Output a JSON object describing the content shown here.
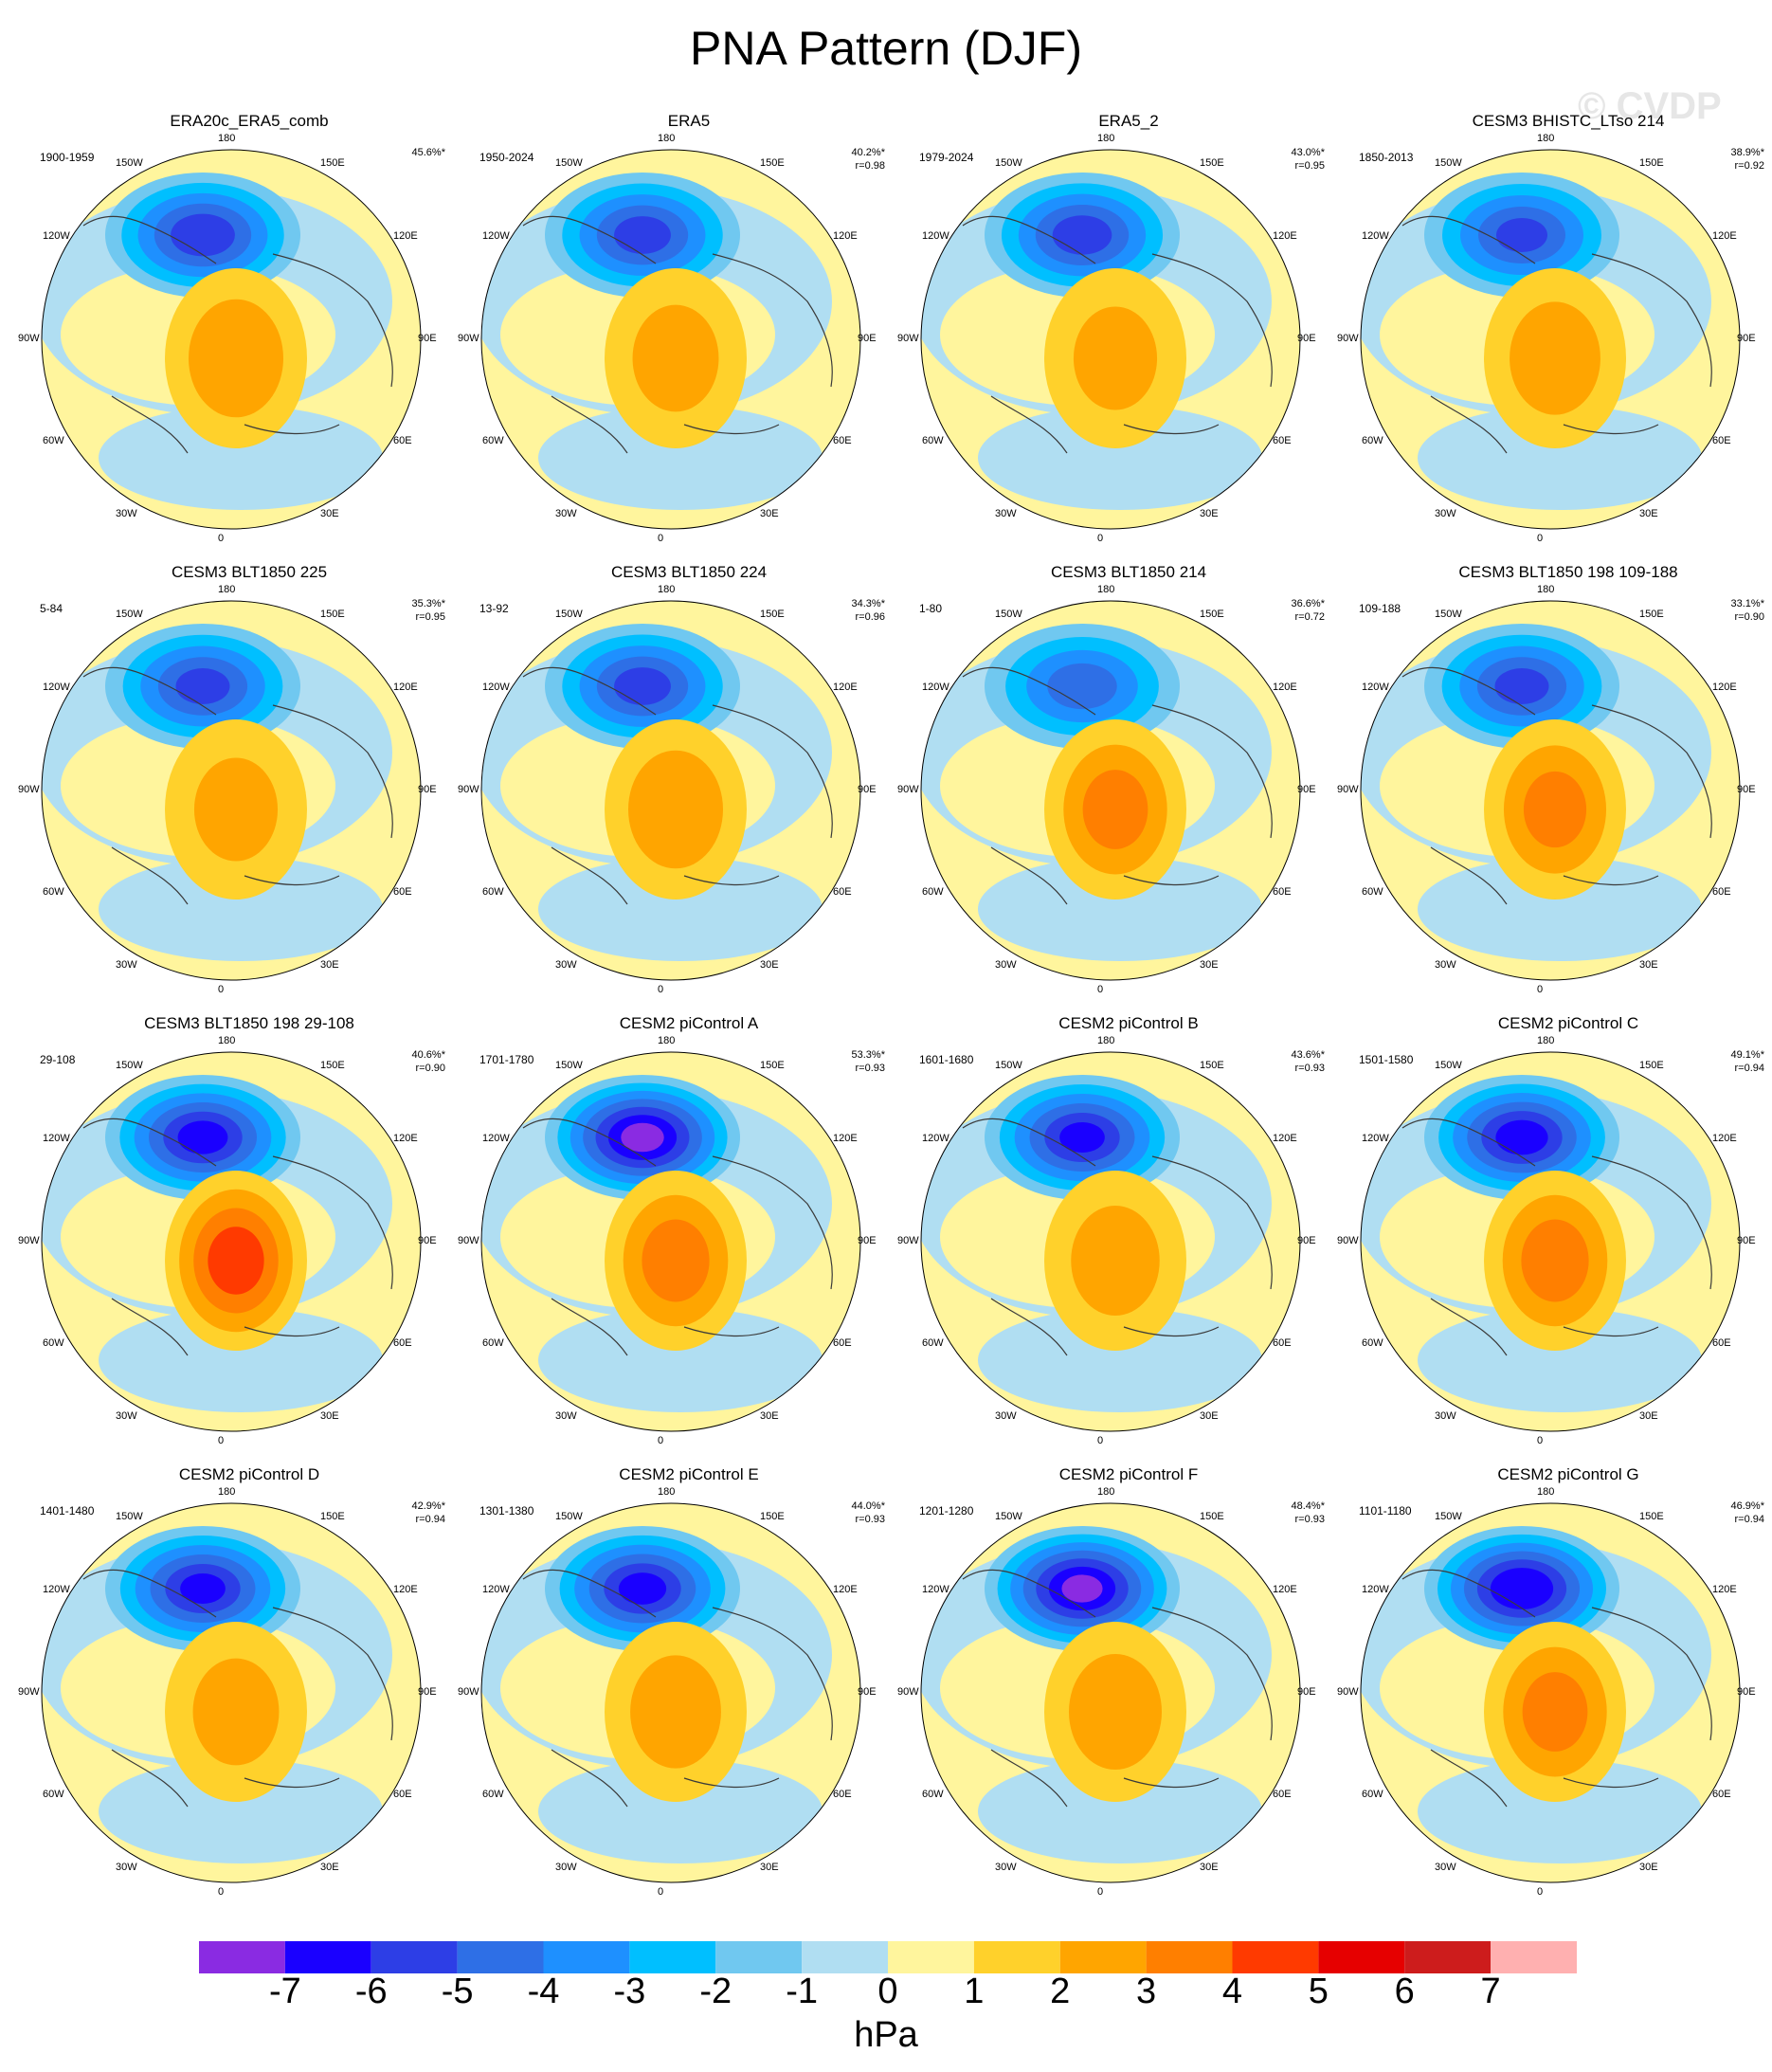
{
  "figure": {
    "title": "PNA Pattern (DJF)",
    "watermark": "© CVDP",
    "units": "hPa"
  },
  "longitude_labels": {
    "top": "180",
    "top_left": "150W",
    "top_right": "150E",
    "upper_left": "120W",
    "upper_right": "120E",
    "mid_left": "90W",
    "mid_right": "90E",
    "lower_left": "60W",
    "lower_right": "60E",
    "bottom_left": "30W",
    "bottom_right": "30E",
    "bottom": "0"
  },
  "colors": {
    "land_outline": "#3a3a3a",
    "map_border": "#000000"
  },
  "colorbar": {
    "colors": [
      "#8a2be2",
      "#1a00ff",
      "#2d3ee6",
      "#2e6fe6",
      "#1e90ff",
      "#00bfff",
      "#70c8f0",
      "#b0def2",
      "#fff59d",
      "#ffd12b",
      "#ffa500",
      "#ff7f00",
      "#ff3a00",
      "#e60000",
      "#cd1c1c",
      "#ffb0b0"
    ],
    "labels": [
      "-7",
      "-6",
      "-5",
      "-4",
      "-3",
      "-2",
      "-1",
      "0",
      "1",
      "2",
      "3",
      "4",
      "5",
      "6",
      "7"
    ]
  },
  "panels": [
    {
      "title": "ERA20c_ERA5_comb",
      "period": "1900-1959",
      "pct": "45.6%*",
      "r": "",
      "low": -5.5,
      "high": 2.6
    },
    {
      "title": "ERA5",
      "period": "1950-2024",
      "pct": "40.2%*",
      "r": "r=0.98",
      "low": -5.2,
      "high": 2.2
    },
    {
      "title": "ERA5_2",
      "period": "1979-2024",
      "pct": "43.0%*",
      "r": "r=0.95",
      "low": -5.3,
      "high": 2.1
    },
    {
      "title": "CESM3 BHISTC_LTso 214",
      "period": "1850-2013",
      "pct": "38.9%*",
      "r": "r=0.92",
      "low": -5.0,
      "high": 2.4
    },
    {
      "title": "CESM3 BLT1850 225",
      "period": "5-84",
      "pct": "35.3%*",
      "r": "r=0.95",
      "low": -5.1,
      "high": 2.1
    },
    {
      "title": "CESM3 BLT1850 224",
      "period": "13-92",
      "pct": "34.3%*",
      "r": "r=0.96",
      "low": -5.2,
      "high": 2.6
    },
    {
      "title": "CESM3 BLT1850 214",
      "period": "1-80",
      "pct": "36.6%*",
      "r": "r=0.72",
      "low": -4.3,
      "high": 3.2
    },
    {
      "title": "CESM3 BLT1850 198 109-188",
      "period": "109-188",
      "pct": "33.1%*",
      "r": "r=0.90",
      "low": -5.1,
      "high": 3.1
    },
    {
      "title": "CESM3 BLT1850 198 29-108",
      "period": "29-108",
      "pct": "40.6%*",
      "r": "r=0.90",
      "low": -6.2,
      "high": 4.3
    },
    {
      "title": "CESM2 piControl A",
      "period": "1701-1780",
      "pct": "53.3%*",
      "r": "r=0.93",
      "low": -7.1,
      "high": 3.3
    },
    {
      "title": "CESM2 piControl B",
      "period": "1601-1680",
      "pct": "43.6%*",
      "r": "r=0.93",
      "low": -6.0,
      "high": 2.3
    },
    {
      "title": "CESM2 piControl C",
      "period": "1501-1580",
      "pct": "49.1%*",
      "r": "r=0.94",
      "low": -6.3,
      "high": 3.3
    },
    {
      "title": "CESM2 piControl D",
      "period": "1401-1480",
      "pct": "42.9%*",
      "r": "r=0.94",
      "low": -6.0,
      "high": 2.2
    },
    {
      "title": "CESM2 piControl E",
      "period": "1301-1380",
      "pct": "44.0%*",
      "r": "r=0.93",
      "low": -6.1,
      "high": 2.4
    },
    {
      "title": "CESM2 piControl F",
      "period": "1201-1280",
      "pct": "48.4%*",
      "r": "r=0.93",
      "low": -7.0,
      "high": 2.5
    },
    {
      "title": "CESM2 piControl G",
      "period": "1101-1180",
      "pct": "46.9%*",
      "r": "r=0.94",
      "low": -6.8,
      "high": 3.2
    }
  ]
}
